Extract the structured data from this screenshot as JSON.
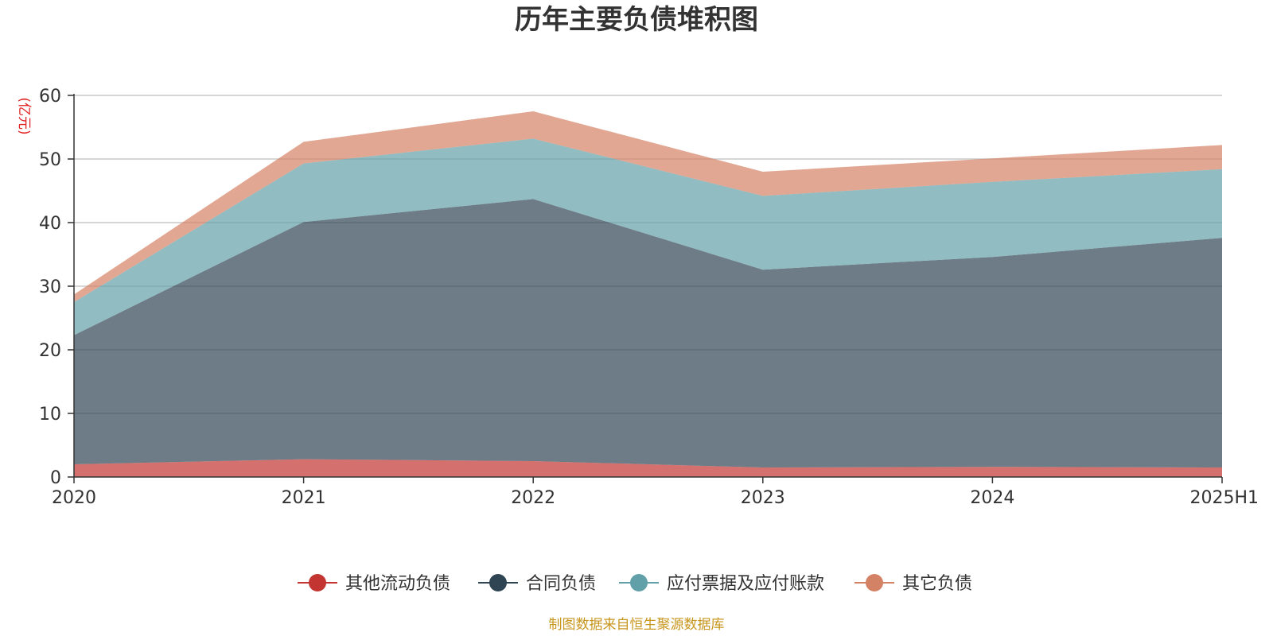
{
  "chart_data": {
    "type": "area",
    "stacked": true,
    "title": "历年主要负债堆积图",
    "unit_label": "(亿元)",
    "categories": [
      "2020",
      "2021",
      "2022",
      "2023",
      "2024",
      "2025H1"
    ],
    "y_ticks": [
      "0",
      "10",
      "20",
      "30",
      "40",
      "50",
      "60"
    ],
    "ylim": [
      0,
      60
    ],
    "grid": true,
    "legend_position": "bottom",
    "series": [
      {
        "name": "其他流动负债",
        "color": "#c23531",
        "values": [
          2.0,
          2.8,
          2.5,
          1.5,
          1.6,
          1.5
        ]
      },
      {
        "name": "合同负债",
        "color": "#2f4554",
        "values": [
          20.3,
          37.3,
          41.2,
          31.1,
          33.0,
          36.1
        ]
      },
      {
        "name": "应付票据及应付账款",
        "color": "#61a0a8",
        "values": [
          5.2,
          9.2,
          9.5,
          11.6,
          11.8,
          10.8
        ]
      },
      {
        "name": "其它负债",
        "color": "#d48265",
        "values": [
          1.2,
          3.4,
          4.3,
          3.8,
          3.7,
          3.8
        ]
      }
    ],
    "source_text": "制图数据来自恒生聚源数据库"
  }
}
